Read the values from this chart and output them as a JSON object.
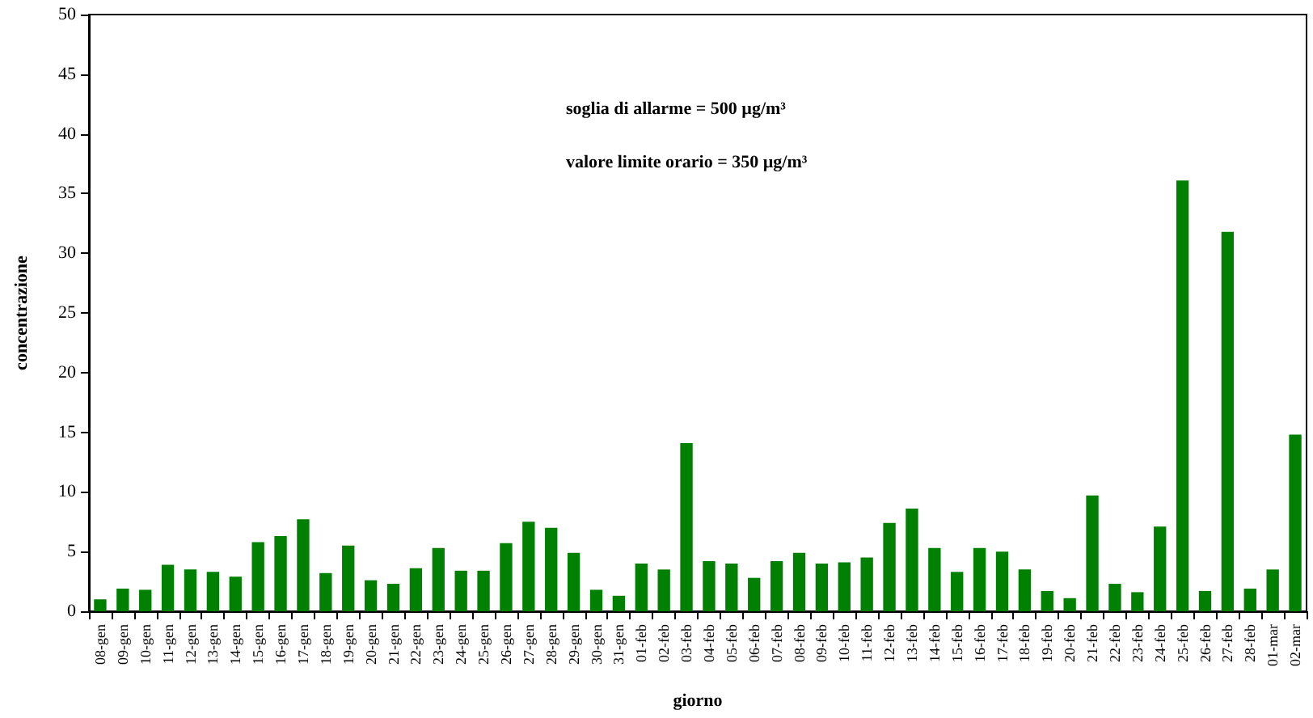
{
  "chart_data": {
    "type": "bar",
    "xlabel": "giorno",
    "ylabel": "concentrazione",
    "annotations": [
      "soglia di allarme = 500 µg/m³",
      "valore limite orario = 350 µg/m³"
    ],
    "categories": [
      "08-gen",
      "09-gen",
      "10-gen",
      "11-gen",
      "12-gen",
      "13-gen",
      "14-gen",
      "15-gen",
      "16-gen",
      "17-gen",
      "18-gen",
      "19-gen",
      "20-gen",
      "21-gen",
      "22-gen",
      "23-gen",
      "24-gen",
      "25-gen",
      "26-gen",
      "27-gen",
      "28-gen",
      "29-gen",
      "30-gen",
      "31-gen",
      "01-feb",
      "02-feb",
      "03-feb",
      "04-feb",
      "05-feb",
      "06-feb",
      "07-feb",
      "08-feb",
      "09-feb",
      "10-feb",
      "11-feb",
      "12-feb",
      "13-feb",
      "14-feb",
      "15-feb",
      "16-feb",
      "17-feb",
      "18-feb",
      "19-feb",
      "20-feb",
      "21-feb",
      "22-feb",
      "23-feb",
      "24-feb",
      "25-feb",
      "26-feb",
      "27-feb",
      "28-feb",
      "01-mar",
      "02-mar"
    ],
    "values": [
      1.0,
      1.9,
      1.8,
      3.9,
      3.5,
      3.3,
      2.9,
      5.8,
      6.3,
      7.7,
      3.2,
      5.5,
      2.6,
      2.3,
      3.6,
      5.3,
      3.4,
      3.4,
      5.7,
      7.5,
      7.0,
      4.9,
      1.8,
      1.3,
      4.0,
      3.5,
      14.1,
      4.2,
      4.0,
      2.8,
      4.2,
      4.9,
      4.0,
      4.1,
      4.5,
      7.4,
      8.6,
      5.3,
      3.3,
      5.3,
      5.0,
      3.5,
      1.7,
      1.1,
      9.7,
      2.3,
      1.6,
      7.1,
      36.1,
      1.7,
      31.8,
      1.9,
      3.5,
      14.8
    ],
    "color": "#008000",
    "ylim": [
      0,
      50
    ],
    "yticks": [
      0,
      5,
      10,
      15,
      20,
      25,
      30,
      35,
      40,
      45,
      50
    ],
    "grid": false
  }
}
